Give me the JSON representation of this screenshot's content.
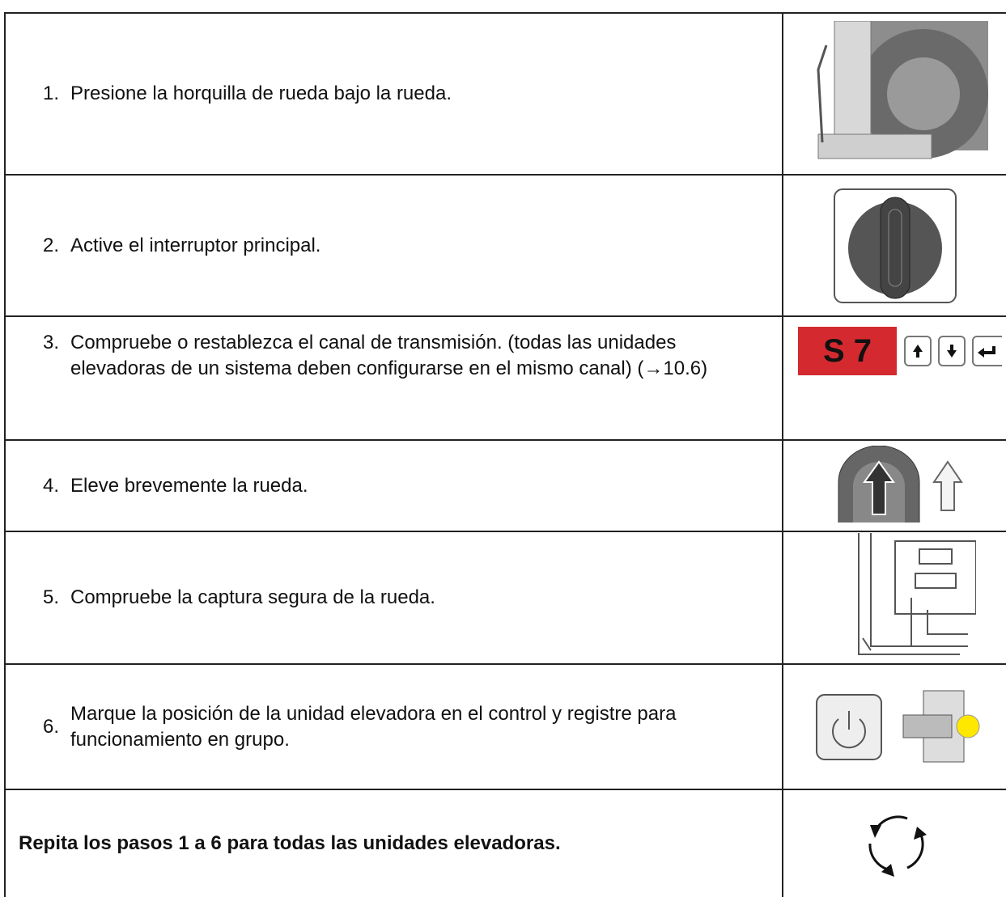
{
  "steps": [
    {
      "number": "1.",
      "text": "Presione la horquilla de rueda bajo la rueda."
    },
    {
      "number": "2.",
      "text": "Active el interruptor principal."
    },
    {
      "number": "3.",
      "text": "Compruebe o restablezca el canal de transmisión. (todas las unidades elevadoras de un sistema deben configurarse en el mismo canal) (→10.6)",
      "display": "S 7"
    },
    {
      "number": "4.",
      "text": "Eleve brevemente la rueda."
    },
    {
      "number": "5.",
      "text": "Compruebe la captura segura de la rueda."
    },
    {
      "number": "6.",
      "text": "Marque la posición de la unidad elevadora en el control y registre para funcionamiento en grupo."
    }
  ],
  "footer": {
    "text": "Repita los pasos 1 a 6 para todas las unidades elevadoras."
  }
}
